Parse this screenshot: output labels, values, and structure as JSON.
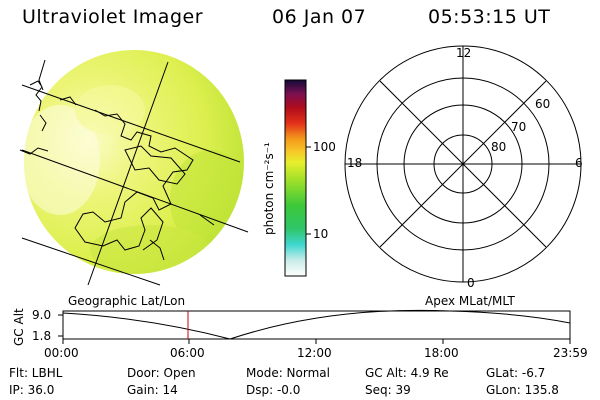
{
  "header": {
    "instrument": "Ultraviolet Imager",
    "date": "06 Jan 07",
    "time": "05:53:15 UT"
  },
  "colorbar": {
    "unit_label": "photon cm⁻²s⁻¹",
    "ticks": [
      "100",
      "10"
    ]
  },
  "polar_plot": {
    "mlt_labels": [
      "12",
      "18",
      "6",
      "0"
    ],
    "mlat_labels": [
      "60",
      "70",
      "80"
    ]
  },
  "panel_labels": {
    "left": "Geographic Lat/Lon",
    "right": "Apex MLat/MLT"
  },
  "altitude_strip": {
    "axis_label": "GC Alt",
    "y_ticks": [
      "9.0",
      "1.8"
    ],
    "x_ticks": [
      "00:00",
      "06:00",
      "12:00",
      "18:00",
      "23:59"
    ]
  },
  "status": {
    "filter": "Flt: LBHL",
    "ip": "IP: 36.0",
    "door": "Door: Open",
    "gain": "Gain: 14",
    "mode": "Mode: Normal",
    "dsp": "Dsp:   -0.0",
    "gc_alt": "GC Alt: 4.9 Re",
    "seq": "Seq: 39",
    "glat": "GLat:   -6.7",
    "glon": "GLon: 135.8"
  },
  "colors": {
    "image_main": "#e6f25a",
    "image_bright": "#fbfcc0",
    "image_dim": "#c8e83a",
    "marker": "#cc0000"
  }
}
